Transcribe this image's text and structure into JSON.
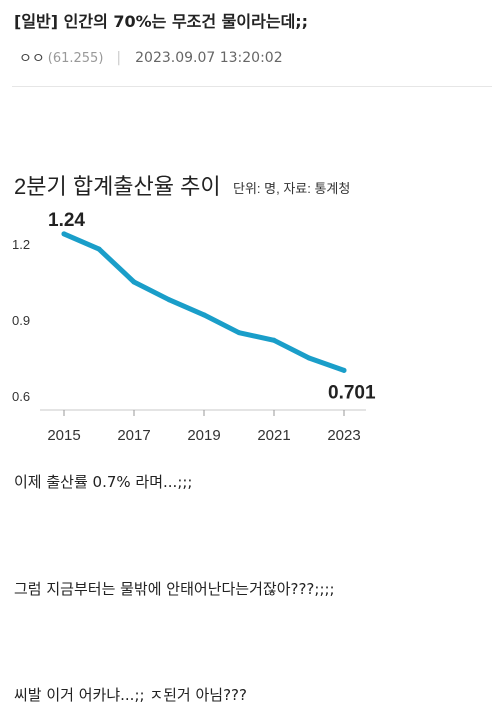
{
  "post": {
    "title": "[일반] 인간의 70%는 무조건 물이라는데;;",
    "author": "ㅇㅇ",
    "ip": "(61.255)",
    "separator": "|",
    "datetime": "2023.09.07 13:20:02",
    "paragraphs": [
      "이제 출산률 0.7% 라며...;;;",
      "그럼 지금부터는 물밖에 안태어난다는거잖아???;;;;",
      "씨발 이거 어카냐...;; ㅈ된거 아님???"
    ]
  },
  "chart_data": {
    "type": "line",
    "title": "2분기 합계출산율 추이",
    "subtitle": "단위: 명, 자료: 통계청",
    "x": [
      2015,
      2016,
      2017,
      2018,
      2019,
      2020,
      2021,
      2022,
      2023
    ],
    "series": [
      {
        "values": [
          1.24,
          1.18,
          1.05,
          0.98,
          0.92,
          0.85,
          0.82,
          0.75,
          0.701
        ]
      }
    ],
    "x_ticks": [
      "2015",
      "2017",
      "2019",
      "2021",
      "2023"
    ],
    "y_ticks": [
      "1.2",
      "0.9",
      "0.6"
    ],
    "ylim": [
      0.55,
      1.35
    ],
    "data_labels": [
      {
        "index": 0,
        "text": "1.24"
      },
      {
        "index": 8,
        "text": "0.701"
      }
    ],
    "line_color": "#1a9ec9",
    "grid": false
  }
}
